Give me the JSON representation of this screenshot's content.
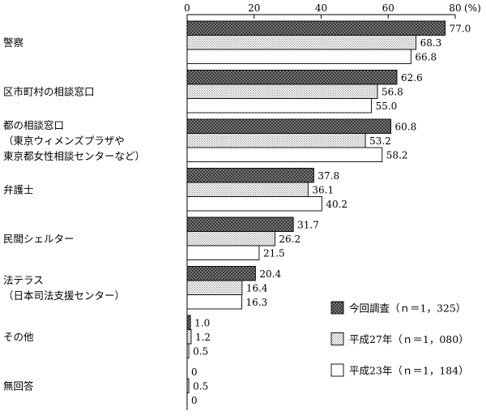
{
  "chart_data": {
    "type": "bar",
    "orientation": "horizontal",
    "xlim": [
      0,
      80
    ],
    "ticks": [
      "0",
      "20",
      "40",
      "60",
      "80"
    ],
    "unit": "(%)",
    "grid": false,
    "legend_position": "bottom-right",
    "categories": [
      [
        "警察"
      ],
      [
        "区市町村の相談窓口"
      ],
      [
        "都の相談窓口",
        "（東京ウィメンズプラザや",
        "東京都女性相談センターなど）"
      ],
      [
        "弁護士"
      ],
      [
        "民間シェルター"
      ],
      [
        "法テラス",
        "（日本司法支援センター）"
      ],
      [
        "その他"
      ],
      [
        "無回答"
      ]
    ],
    "series": [
      {
        "name": "今回調査（ｎ＝1，325）",
        "pattern": "crosshatch",
        "values": [
          77.0,
          62.6,
          60.8,
          37.8,
          31.7,
          20.4,
          1.0,
          0
        ],
        "labels": [
          "77.0",
          "62.6",
          "60.8",
          "37.8",
          "31.7",
          "20.4",
          "1.0",
          "0"
        ]
      },
      {
        "name": "平成27年（ｎ＝1，080）",
        "pattern": "dots",
        "values": [
          68.3,
          56.8,
          53.2,
          36.1,
          26.2,
          16.4,
          1.2,
          0.5
        ],
        "labels": [
          "68.3",
          "56.8",
          "53.2",
          "36.1",
          "26.2",
          "16.4",
          "1.2",
          "0.5"
        ]
      },
      {
        "name": "平成23年（ｎ＝1，184）",
        "pattern": "none",
        "values": [
          66.8,
          55.0,
          58.2,
          40.2,
          21.5,
          16.3,
          0.5,
          0
        ],
        "labels": [
          "66.8",
          "55.0",
          "58.2",
          "40.2",
          "21.5",
          "16.3",
          "0.5",
          "0"
        ]
      }
    ]
  }
}
